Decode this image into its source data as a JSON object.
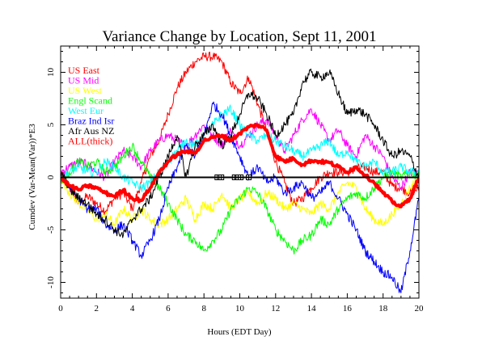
{
  "chart_data": {
    "type": "line",
    "title": "Variance Change by Location, Sept 11, 2001",
    "xlabel": "Hours (EDT Day)",
    "ylabel": "Cumdev (Var-Mean(Var))*E3",
    "xlim": [
      0,
      20
    ],
    "ylim": [
      -11.5,
      12.5
    ],
    "xticks": [
      0,
      2,
      4,
      6,
      8,
      10,
      12,
      14,
      16,
      18,
      20
    ],
    "yticks": [
      -10,
      -5,
      0,
      5,
      10
    ],
    "grid": false,
    "legend_position": "top-left",
    "zero_line": true,
    "event_markers": {
      "label": "",
      "x": [
        8.75,
        8.97,
        9.72,
        9.92,
        10.05,
        10.5
      ],
      "y": 0
    },
    "series": [
      {
        "name": "US East",
        "color": "#ff0000",
        "width": 1,
        "x": [
          0,
          0.5,
          1,
          1.5,
          2,
          2.5,
          3,
          3.5,
          4,
          4.5,
          5,
          5.5,
          6,
          6.5,
          7,
          7.5,
          8,
          8.5,
          9,
          9.5,
          10,
          10.5,
          11,
          11.5,
          12,
          12.5,
          13,
          13.5,
          14,
          14.5,
          15,
          15.5,
          16,
          16.5,
          17,
          17.5,
          18,
          18.5,
          19,
          19.5,
          20
        ],
        "y": [
          0.5,
          -1,
          -2.5,
          -1.8,
          -2.5,
          -3.2,
          -2,
          -1.5,
          -3,
          -0.5,
          2,
          3.5,
          6,
          8.5,
          10,
          11,
          11.5,
          11.5,
          11,
          9,
          8,
          9.5,
          7,
          4.5,
          1.5,
          -0.5,
          -2.5,
          -2,
          -1,
          0,
          0.5,
          0.5,
          0.5,
          0.8,
          1,
          0.5,
          0.5,
          -0.8,
          -1,
          -1.5,
          -1
        ]
      },
      {
        "name": "US Mid",
        "color": "#ff00ff",
        "width": 1,
        "x": [
          0,
          0.5,
          1,
          1.5,
          2,
          2.5,
          3,
          3.5,
          4,
          4.5,
          5,
          5.5,
          6,
          6.5,
          7,
          7.5,
          8,
          8.5,
          9,
          9.5,
          10,
          10.5,
          11,
          11.5,
          12,
          12.5,
          13,
          13.5,
          14,
          14.5,
          15,
          15.5,
          16,
          16.5,
          17,
          17.5,
          18,
          18.5,
          19,
          19.5,
          20
        ],
        "y": [
          0.5,
          1,
          1.5,
          1.2,
          0.5,
          0,
          1.5,
          2.5,
          2,
          1,
          2.5,
          3.5,
          4,
          3.5,
          3,
          4,
          5,
          4,
          3,
          4.5,
          3,
          4,
          5,
          5.5,
          4,
          2.5,
          4,
          5.5,
          6.5,
          5,
          3.5,
          4.5,
          3,
          2,
          4,
          3,
          2,
          0,
          -1,
          0.5,
          0.5
        ]
      },
      {
        "name": "US West",
        "color": "#ffff00",
        "width": 1,
        "x": [
          0,
          0.5,
          1,
          1.5,
          2,
          2.5,
          3,
          3.5,
          4,
          4.5,
          5,
          5.5,
          6,
          6.5,
          7,
          7.5,
          8,
          8.5,
          9,
          9.5,
          10,
          10.5,
          11,
          11.5,
          12,
          12.5,
          13,
          13.5,
          14,
          14.5,
          15,
          15.5,
          16,
          16.5,
          17,
          17.5,
          18,
          18.5,
          19,
          19.5,
          20
        ],
        "y": [
          0,
          -1.5,
          -2.5,
          -3,
          -4,
          -3.5,
          -4.5,
          -3,
          -4,
          -3,
          -4,
          -4.5,
          -4,
          -3,
          -2,
          -4,
          -2.5,
          -3,
          -1.5,
          -3,
          -2,
          -1.5,
          -2.5,
          -1.5,
          -2,
          -3,
          -2.5,
          -3,
          -3.5,
          -2.5,
          -3,
          -1.5,
          -0.5,
          -1,
          -3,
          -4,
          -4.5,
          -3.5,
          -2.5,
          -1,
          0
        ]
      },
      {
        "name": "Engl Scand",
        "color": "#00ff00",
        "width": 1,
        "x": [
          0,
          0.5,
          1,
          1.5,
          2,
          2.5,
          3,
          3.5,
          4,
          4.5,
          5,
          5.5,
          6,
          6.5,
          7,
          7.5,
          8,
          8.5,
          9,
          9.5,
          10,
          10.5,
          11,
          11.5,
          12,
          12.5,
          13,
          13.5,
          14,
          14.5,
          15,
          15.5,
          16,
          16.5,
          17,
          17.5,
          18,
          18.5,
          19,
          19.5,
          20
        ],
        "y": [
          -0.5,
          0.5,
          1.5,
          1,
          1.5,
          0.5,
          1,
          2,
          3,
          1.5,
          0,
          -1,
          -2.5,
          -4,
          -5.5,
          -6,
          -7,
          -6,
          -5,
          -3,
          -2,
          -1,
          -1.5,
          -3,
          -5,
          -6,
          -7,
          -6,
          -5.5,
          -4,
          -4.5,
          -3,
          -2,
          -1.5,
          -2,
          -1,
          0,
          0.5,
          0,
          0.5,
          0
        ]
      },
      {
        "name": "West Eur",
        "color": "#00ffff",
        "width": 1,
        "x": [
          0,
          0.5,
          1,
          1.5,
          2,
          2.5,
          3,
          3.5,
          4,
          4.5,
          5,
          5.5,
          6,
          6.5,
          7,
          7.5,
          8,
          8.5,
          9,
          9.5,
          10,
          10.5,
          11,
          11.5,
          12,
          12.5,
          13,
          13.5,
          14,
          14.5,
          15,
          15.5,
          16,
          16.5,
          17,
          17.5,
          18,
          18.5,
          19,
          19.5,
          20
        ],
        "y": [
          0,
          0.5,
          1,
          0.5,
          0.5,
          1.5,
          1,
          0,
          -0.5,
          -1,
          -0.5,
          0.5,
          1.5,
          2.5,
          3.5,
          3,
          4,
          5,
          6,
          6.5,
          5,
          4,
          3.5,
          4,
          3.5,
          3,
          2.5,
          2,
          2.5,
          3,
          3.5,
          2,
          2.5,
          1.5,
          1,
          1.5,
          0.5,
          0.5,
          1,
          0.5,
          0.5
        ]
      },
      {
        "name": "Braz Ind Isr",
        "color": "#0000ff",
        "width": 1,
        "x": [
          0,
          0.5,
          1,
          1.5,
          2,
          2.5,
          3,
          3.5,
          4,
          4.5,
          5,
          5.5,
          6,
          6.5,
          7,
          7.5,
          8,
          8.5,
          9,
          9.5,
          10,
          10.5,
          11,
          11.5,
          12,
          12.5,
          13,
          13.5,
          14,
          14.5,
          15,
          15.5,
          16,
          16.5,
          17,
          17.5,
          18,
          18.5,
          19,
          19.5,
          20
        ],
        "y": [
          0,
          -1,
          -2,
          -3,
          -3,
          -4.5,
          -5,
          -4.5,
          -6,
          -7.5,
          -6,
          -4,
          -1,
          1,
          3,
          2,
          4,
          7,
          6,
          4,
          2,
          0,
          1,
          -0.5,
          0,
          -1.5,
          -1,
          -0.5,
          -2,
          -1.5,
          -0.5,
          -2,
          -3.5,
          -5,
          -7,
          -8,
          -9,
          -9.5,
          -11,
          -7,
          -2
        ]
      },
      {
        "name": "Afr Aus NZ",
        "color": "#000000",
        "width": 1,
        "x": [
          0,
          0.5,
          1,
          1.5,
          2,
          2.5,
          3,
          3.5,
          4,
          4.5,
          5,
          5.5,
          6,
          6.5,
          7,
          7.5,
          8,
          8.5,
          9,
          9.5,
          10,
          10.5,
          11,
          11.5,
          12,
          12.5,
          13,
          13.5,
          14,
          14.5,
          15,
          15.5,
          16,
          16.5,
          17,
          17.5,
          18,
          18.5,
          19,
          19.5,
          20
        ],
        "y": [
          0.5,
          -1,
          -2,
          -2.5,
          -3.5,
          -4,
          -5,
          -5.5,
          -4,
          -3,
          -2,
          0,
          2,
          4,
          0,
          3,
          4,
          5,
          3,
          4,
          6,
          8,
          7.5,
          6,
          4,
          5,
          6,
          9,
          10,
          9.5,
          10,
          8,
          6,
          6.5,
          6,
          5,
          3.5,
          2,
          2.5,
          2,
          0
        ]
      },
      {
        "name": "ALL(thick)",
        "color": "#ff0000",
        "width": 4,
        "x": [
          0,
          0.5,
          1,
          1.5,
          2,
          2.5,
          3,
          3.5,
          4,
          4.5,
          5,
          5.5,
          6,
          6.5,
          7,
          7.5,
          8,
          8.5,
          9,
          9.5,
          10,
          10.5,
          11,
          11.5,
          12,
          12.5,
          13,
          13.5,
          14,
          14.5,
          15,
          15.5,
          16,
          16.5,
          17,
          17.5,
          18,
          18.5,
          19,
          19.5,
          20
        ],
        "y": [
          0,
          -0.8,
          -1.2,
          -0.8,
          -1,
          -1.5,
          -1.8,
          -1.2,
          -2,
          -2.2,
          -1,
          0.5,
          1.5,
          2.2,
          2.5,
          2.3,
          3.5,
          3.8,
          4,
          3.5,
          4.2,
          4.8,
          5,
          4.5,
          2,
          1.5,
          1.8,
          1.2,
          1.6,
          1.5,
          1.4,
          1,
          0.5,
          1,
          0.2,
          -0.5,
          -1.5,
          -2.3,
          -2.8,
          -2,
          0
        ]
      }
    ]
  }
}
